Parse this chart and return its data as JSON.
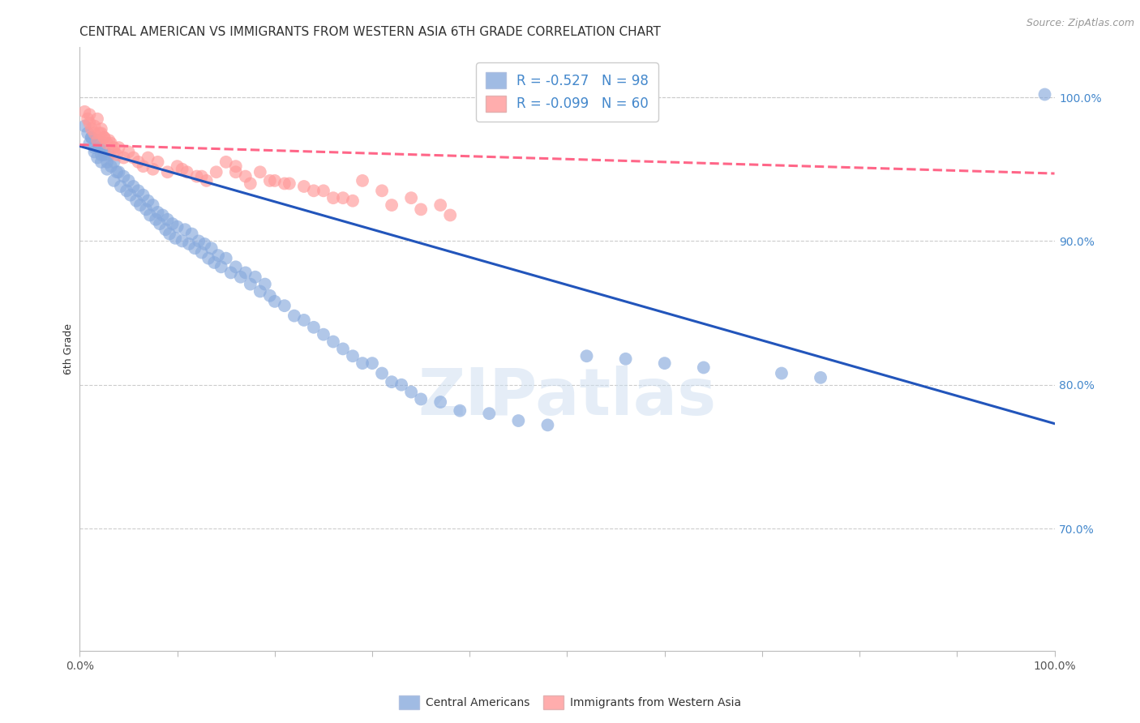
{
  "title": "CENTRAL AMERICAN VS IMMIGRANTS FROM WESTERN ASIA 6TH GRADE CORRELATION CHART",
  "source": "Source: ZipAtlas.com",
  "ylabel": "6th Grade",
  "watermark": "ZIPatlas",
  "legend_blue_label": "Central Americans",
  "legend_pink_label": "Immigrants from Western Asia",
  "legend_R_blue": "R = -0.527",
  "legend_N_blue": "N = 98",
  "legend_R_pink": "R = -0.099",
  "legend_N_pink": "N = 60",
  "blue_color": "#88AADD",
  "pink_color": "#FF9999",
  "trend_blue_color": "#2255BB",
  "trend_pink_color": "#FF6688",
  "xmin": 0.0,
  "xmax": 1.0,
  "ymin": 0.615,
  "ymax": 1.035,
  "right_yticks": [
    0.7,
    0.8,
    0.9,
    1.0
  ],
  "right_yticklabels": [
    "70.0%",
    "80.0%",
    "90.0%",
    "100.0%"
  ],
  "blue_trend_y_start": 0.966,
  "blue_trend_y_end": 0.773,
  "pink_trend_y_start": 0.967,
  "pink_trend_y_end": 0.947,
  "grid_color": "#CCCCCC",
  "background_color": "#FFFFFF",
  "title_fontsize": 11,
  "axis_label_fontsize": 9,
  "tick_fontsize": 10,
  "legend_fontsize": 12,
  "blue_x": [
    0.005,
    0.008,
    0.01,
    0.012,
    0.015,
    0.018,
    0.02,
    0.022,
    0.025,
    0.012,
    0.015,
    0.018,
    0.02,
    0.025,
    0.028,
    0.03,
    0.032,
    0.035,
    0.038,
    0.022,
    0.028,
    0.035,
    0.04,
    0.042,
    0.045,
    0.048,
    0.05,
    0.052,
    0.055,
    0.058,
    0.06,
    0.062,
    0.065,
    0.068,
    0.07,
    0.072,
    0.075,
    0.078,
    0.08,
    0.082,
    0.085,
    0.088,
    0.09,
    0.092,
    0.095,
    0.098,
    0.1,
    0.105,
    0.108,
    0.112,
    0.115,
    0.118,
    0.122,
    0.125,
    0.128,
    0.132,
    0.135,
    0.138,
    0.142,
    0.145,
    0.15,
    0.155,
    0.16,
    0.165,
    0.17,
    0.175,
    0.18,
    0.185,
    0.19,
    0.195,
    0.2,
    0.21,
    0.22,
    0.23,
    0.24,
    0.25,
    0.26,
    0.27,
    0.28,
    0.29,
    0.3,
    0.31,
    0.32,
    0.33,
    0.34,
    0.35,
    0.37,
    0.39,
    0.42,
    0.45,
    0.48,
    0.52,
    0.56,
    0.6,
    0.64,
    0.72,
    0.76,
    0.99
  ],
  "blue_y": [
    0.98,
    0.975,
    0.968,
    0.972,
    0.965,
    0.97,
    0.968,
    0.96,
    0.962,
    0.972,
    0.962,
    0.958,
    0.965,
    0.96,
    0.955,
    0.96,
    0.952,
    0.955,
    0.948,
    0.955,
    0.95,
    0.942,
    0.948,
    0.938,
    0.945,
    0.935,
    0.942,
    0.932,
    0.938,
    0.928,
    0.935,
    0.925,
    0.932,
    0.922,
    0.928,
    0.918,
    0.925,
    0.915,
    0.92,
    0.912,
    0.918,
    0.908,
    0.915,
    0.905,
    0.912,
    0.902,
    0.91,
    0.9,
    0.908,
    0.898,
    0.905,
    0.895,
    0.9,
    0.892,
    0.898,
    0.888,
    0.895,
    0.885,
    0.89,
    0.882,
    0.888,
    0.878,
    0.882,
    0.875,
    0.878,
    0.87,
    0.875,
    0.865,
    0.87,
    0.862,
    0.858,
    0.855,
    0.848,
    0.845,
    0.84,
    0.835,
    0.83,
    0.825,
    0.82,
    0.815,
    0.815,
    0.808,
    0.802,
    0.8,
    0.795,
    0.79,
    0.788,
    0.782,
    0.78,
    0.775,
    0.772,
    0.82,
    0.818,
    0.815,
    0.812,
    0.808,
    0.805,
    1.002
  ],
  "pink_x": [
    0.005,
    0.008,
    0.01,
    0.012,
    0.015,
    0.018,
    0.01,
    0.015,
    0.02,
    0.018,
    0.022,
    0.025,
    0.022,
    0.028,
    0.025,
    0.03,
    0.035,
    0.032,
    0.038,
    0.035,
    0.04,
    0.045,
    0.05,
    0.055,
    0.06,
    0.065,
    0.07,
    0.075,
    0.08,
    0.09,
    0.1,
    0.11,
    0.12,
    0.13,
    0.14,
    0.15,
    0.16,
    0.17,
    0.185,
    0.2,
    0.215,
    0.23,
    0.25,
    0.27,
    0.29,
    0.31,
    0.34,
    0.37,
    0.16,
    0.195,
    0.21,
    0.24,
    0.105,
    0.125,
    0.175,
    0.26,
    0.28,
    0.32,
    0.35,
    0.38
  ],
  "pink_y": [
    0.99,
    0.985,
    0.982,
    0.978,
    0.975,
    0.985,
    0.988,
    0.98,
    0.975,
    0.97,
    0.978,
    0.972,
    0.975,
    0.968,
    0.972,
    0.97,
    0.965,
    0.968,
    0.96,
    0.962,
    0.965,
    0.958,
    0.962,
    0.958,
    0.955,
    0.952,
    0.958,
    0.95,
    0.955,
    0.948,
    0.952,
    0.948,
    0.945,
    0.942,
    0.948,
    0.955,
    0.952,
    0.945,
    0.948,
    0.942,
    0.94,
    0.938,
    0.935,
    0.93,
    0.942,
    0.935,
    0.93,
    0.925,
    0.948,
    0.942,
    0.94,
    0.935,
    0.95,
    0.945,
    0.94,
    0.93,
    0.928,
    0.925,
    0.922,
    0.918
  ]
}
